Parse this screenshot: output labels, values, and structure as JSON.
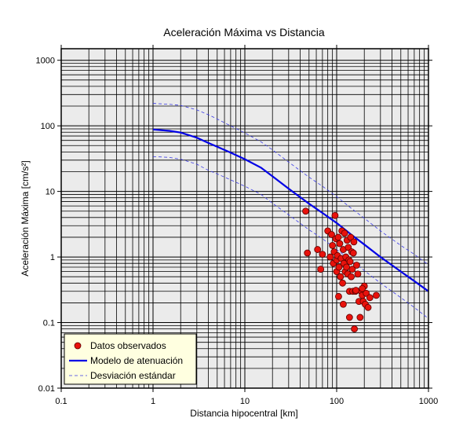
{
  "chart_data": {
    "type": "scatter",
    "title": "Aceleración Máxima vs Distancia",
    "xlabel": "Distancia hipocentral [km]",
    "ylabel": "Aceleración Máxima [cm/s²]",
    "x_scale": "log",
    "y_scale": "log",
    "xlim": [
      0.1,
      1000
    ],
    "ylim": [
      0.01,
      1500
    ],
    "x_ticks": [
      {
        "value": 0.1,
        "label": "0.1"
      },
      {
        "value": 1,
        "label": "1"
      },
      {
        "value": 10,
        "label": "10"
      },
      {
        "value": 100,
        "label": "100"
      },
      {
        "value": 1000,
        "label": "1000"
      }
    ],
    "y_ticks": [
      {
        "value": 0.01,
        "label": "0.01"
      },
      {
        "value": 0.1,
        "label": "0.1"
      },
      {
        "value": 1,
        "label": "1"
      },
      {
        "value": 10,
        "label": "10"
      },
      {
        "value": 100,
        "label": "100"
      },
      {
        "value": 1000,
        "label": "1000"
      }
    ],
    "grid": true,
    "legend_position": "bottom-left",
    "colors": {
      "background": "#ebebeb",
      "grid": "#000000",
      "points": "#e8120c",
      "model": "#0000e6",
      "deviation": "#3a3ae6",
      "legend_bg": "#ffffe0"
    },
    "series": [
      {
        "name": "Datos observados",
        "kind": "points",
        "points": [
          [
            46,
            5.0
          ],
          [
            48,
            1.15
          ],
          [
            62,
            1.3
          ],
          [
            67,
            0.65
          ],
          [
            70,
            1.1
          ],
          [
            80,
            2.5
          ],
          [
            85,
            1.0
          ],
          [
            88,
            2.2
          ],
          [
            90,
            1.5
          ],
          [
            92,
            0.8
          ],
          [
            94,
            1.2
          ],
          [
            96,
            4.3
          ],
          [
            98,
            1.9
          ],
          [
            100,
            0.9
          ],
          [
            100,
            0.6
          ],
          [
            102,
            1.05
          ],
          [
            104,
            2.0
          ],
          [
            106,
            0.7
          ],
          [
            108,
            1.6
          ],
          [
            110,
            0.5
          ],
          [
            112,
            0.95
          ],
          [
            114,
            2.5
          ],
          [
            116,
            0.4
          ],
          [
            118,
            1.3
          ],
          [
            120,
            0.8
          ],
          [
            122,
            2.3
          ],
          [
            124,
            0.6
          ],
          [
            126,
            1.0
          ],
          [
            128,
            0.7
          ],
          [
            130,
            1.8
          ],
          [
            132,
            0.55
          ],
          [
            134,
            1.4
          ],
          [
            136,
            0.9
          ],
          [
            138,
            0.3
          ],
          [
            140,
            0.85
          ],
          [
            142,
            2.0
          ],
          [
            144,
            0.5
          ],
          [
            146,
            1.2
          ],
          [
            148,
            0.65
          ],
          [
            150,
            0.3
          ],
          [
            152,
            1.15
          ],
          [
            154,
            1.7
          ],
          [
            156,
            0.08
          ],
          [
            160,
            0.3
          ],
          [
            165,
            0.75
          ],
          [
            170,
            0.55
          ],
          [
            175,
            0.21
          ],
          [
            180,
            0.12
          ],
          [
            185,
            0.3
          ],
          [
            190,
            0.26
          ],
          [
            195,
            0.21
          ],
          [
            200,
            0.36
          ],
          [
            205,
            0.19
          ],
          [
            210,
            0.28
          ],
          [
            220,
            0.17
          ],
          [
            230,
            0.24
          ],
          [
            105,
            0.25
          ],
          [
            118,
            0.19
          ],
          [
            138,
            0.12
          ],
          [
            162,
            0.31
          ],
          [
            190,
            0.33
          ],
          [
            270,
            0.26
          ]
        ]
      },
      {
        "name": "Modelo de atenuación",
        "kind": "line",
        "points": [
          [
            1,
            88
          ],
          [
            1.5,
            84
          ],
          [
            2,
            79
          ],
          [
            3,
            66
          ],
          [
            4,
            55
          ],
          [
            5,
            48
          ],
          [
            7,
            39
          ],
          [
            10,
            31
          ],
          [
            15,
            23
          ],
          [
            20,
            17
          ],
          [
            30,
            11
          ],
          [
            50,
            6.5
          ],
          [
            70,
            4.7
          ],
          [
            100,
            3.3
          ],
          [
            150,
            2.1
          ],
          [
            200,
            1.55
          ],
          [
            300,
            1.0
          ],
          [
            500,
            0.6
          ],
          [
            700,
            0.43
          ],
          [
            1000,
            0.3
          ]
        ]
      },
      {
        "name": "Desviación estándar",
        "kind": "dashed",
        "points": [
          [
            1,
            220
          ],
          [
            1.5,
            213
          ],
          [
            2,
            205
          ],
          [
            3,
            175
          ],
          [
            4,
            148
          ],
          [
            5,
            127
          ],
          [
            7,
            100
          ],
          [
            10,
            78
          ],
          [
            15,
            57
          ],
          [
            20,
            43
          ],
          [
            30,
            28
          ],
          [
            50,
            16.5
          ],
          [
            70,
            12
          ],
          [
            100,
            8.3
          ],
          [
            150,
            5.3
          ],
          [
            200,
            3.9
          ],
          [
            300,
            2.5
          ],
          [
            500,
            1.5
          ],
          [
            700,
            1.1
          ],
          [
            1000,
            0.76
          ]
        ]
      },
      {
        "name": "",
        "kind": "dashed",
        "points": [
          [
            1,
            34
          ],
          [
            1.5,
            33
          ],
          [
            2,
            31
          ],
          [
            3,
            26
          ],
          [
            4,
            21
          ],
          [
            5,
            18.5
          ],
          [
            7,
            15
          ],
          [
            10,
            12
          ],
          [
            15,
            9
          ],
          [
            20,
            6.6
          ],
          [
            30,
            4.4
          ],
          [
            50,
            2.6
          ],
          [
            70,
            1.9
          ],
          [
            100,
            1.3
          ],
          [
            150,
            0.85
          ],
          [
            200,
            0.62
          ],
          [
            300,
            0.4
          ],
          [
            500,
            0.24
          ],
          [
            700,
            0.17
          ],
          [
            1000,
            0.115
          ]
        ]
      }
    ],
    "legend": [
      {
        "label": "Datos observados",
        "kind": "points"
      },
      {
        "label": "Modelo de atenuación",
        "kind": "line"
      },
      {
        "label": "Desviación estándar",
        "kind": "dashed"
      }
    ]
  }
}
